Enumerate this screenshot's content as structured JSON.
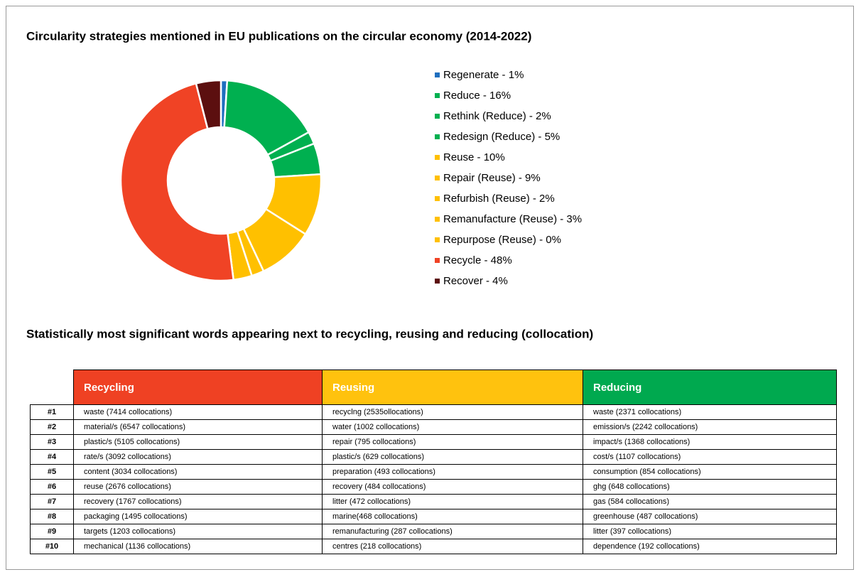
{
  "chart_data": {
    "type": "pie",
    "donut": true,
    "title": "Circularity strategies mentioned in EU publications on the circular economy (2014-2022)",
    "categories": [
      "Regenerate - 1%",
      "Reduce - 16%",
      "Rethink (Reduce) - 2%",
      "Redesign (Reduce) - 5%",
      "Reuse - 10%",
      "Repair (Reuse) - 9%",
      "Refurbish (Reuse) - 2%",
      "Remanufacture (Reuse) - 3%",
      "Repurpose (Reuse) - 0%",
      "Recycle - 48%",
      "Recover - 4%"
    ],
    "values": [
      1,
      16,
      2,
      5,
      10,
      9,
      2,
      3,
      0,
      48,
      4
    ],
    "colors": [
      "#1f6fbf",
      "#00b050",
      "#00b050",
      "#00b050",
      "#ffc000",
      "#ffc000",
      "#ffc000",
      "#ffc000",
      "#ffc000",
      "#f04325",
      "#5c0f0f"
    ]
  },
  "table": {
    "title": "Statistically most significant words appearing next to recycling, reusing and reducing (collocation)",
    "header": [
      "Recycling",
      "Reusing",
      "Reducing"
    ],
    "header_colors": [
      "#ef4123",
      "#ffc20e",
      "#00a94f"
    ],
    "rows": [
      [
        "#1",
        "waste (7414 collocations)",
        "recyclng (2535ollocations)",
        "waste (2371 collocations)"
      ],
      [
        "#2",
        "material/s (6547 collocations)",
        "water (1002 collocations)",
        "emission/s (2242 collocations)"
      ],
      [
        "#3",
        "plastic/s (5105 collocations)",
        "repair (795 collocations)",
        "impact/s (1368 collocations)"
      ],
      [
        "#4",
        "rate/s (3092 collocations)",
        "plastic/s (629 collocations)",
        "cost/s (1107 collocations)"
      ],
      [
        "#5",
        "content (3034 collocations)",
        "preparation (493 collocations)",
        "consumption (854 collocations)"
      ],
      [
        "#6",
        "reuse (2676 collocations)",
        "recovery (484 collocations)",
        "ghg (648 collocations)"
      ],
      [
        "#7",
        "recovery (1767 collocations)",
        "litter (472 collocations)",
        "gas (584 collocations)"
      ],
      [
        "#8",
        "packaging (1495 collocations)",
        "marine(468 collocations)",
        "greenhouse (487 collocations)"
      ],
      [
        "#9",
        "targets (1203 collocations)",
        "remanufacturing (287 collocations)",
        "litter (397 collocations)"
      ],
      [
        "#10",
        "mechanical (1136 collocations)",
        "centres (218 collocations)",
        "dependence (192 collocations)"
      ]
    ]
  }
}
